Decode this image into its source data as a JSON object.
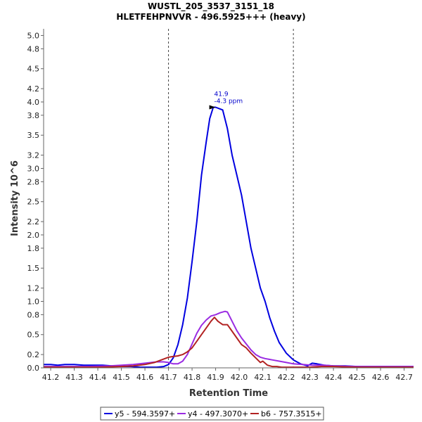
{
  "chart_data": {
    "type": "line",
    "title": "WUSTL_205_3537_3151_18",
    "subtitle": "HLETFEHPNVVR - 496.5925+++ (heavy)",
    "xlabel": "Retention Time",
    "ylabel": "Intensity 10^6",
    "xlim": [
      41.17,
      42.74
    ],
    "ylim": [
      0,
      5.1
    ],
    "x_ticks": [
      "41.2",
      "41.3",
      "41.4",
      "41.5",
      "41.6",
      "41.7",
      "41.8",
      "41.9",
      "42.0",
      "42.1",
      "42.2",
      "42.3",
      "42.4",
      "42.5",
      "42.6",
      "42.7"
    ],
    "y_ticks": [
      "0.0",
      "0.2",
      "0.5",
      "0.8",
      "1.0",
      "1.2",
      "1.5",
      "1.8",
      "2.0",
      "2.2",
      "2.5",
      "2.8",
      "3.0",
      "3.2",
      "3.5",
      "3.8",
      "4.0",
      "4.2",
      "4.5",
      "4.8",
      "5.0"
    ],
    "integration_bounds": [
      41.7,
      42.23
    ],
    "annotation": {
      "x": 41.885,
      "y": 3.92,
      "line1": "41.9",
      "line2": "-4.3 ppm"
    },
    "series": [
      {
        "name": "y5 - 594.3597+",
        "color": "#0000e0",
        "x": [
          41.17,
          41.2,
          41.23,
          41.26,
          41.3,
          41.34,
          41.38,
          41.42,
          41.46,
          41.5,
          41.54,
          41.58,
          41.62,
          41.65,
          41.68,
          41.7,
          41.72,
          41.74,
          41.76,
          41.78,
          41.8,
          41.82,
          41.84,
          41.86,
          41.875,
          41.89,
          41.9,
          41.915,
          41.93,
          41.95,
          41.97,
          41.99,
          42.01,
          42.03,
          42.05,
          42.07,
          42.09,
          42.11,
          42.13,
          42.15,
          42.17,
          42.2,
          42.23,
          42.26,
          42.29,
          42.31,
          42.33,
          42.36,
          42.4,
          42.45,
          42.5,
          42.55,
          42.6,
          42.65,
          42.7,
          42.74
        ],
        "y": [
          0.05,
          0.05,
          0.04,
          0.05,
          0.05,
          0.04,
          0.04,
          0.04,
          0.03,
          0.02,
          0.02,
          0.01,
          0.01,
          0.01,
          0.02,
          0.05,
          0.15,
          0.35,
          0.65,
          1.05,
          1.6,
          2.2,
          2.9,
          3.4,
          3.75,
          3.92,
          3.92,
          3.9,
          3.88,
          3.6,
          3.2,
          2.9,
          2.6,
          2.2,
          1.8,
          1.5,
          1.2,
          1.0,
          0.75,
          0.55,
          0.38,
          0.22,
          0.12,
          0.06,
          0.03,
          0.07,
          0.06,
          0.04,
          0.03,
          0.03,
          0.02,
          0.02,
          0.02,
          0.02,
          0.02,
          0.02
        ]
      },
      {
        "name": "y4 - 497.3070+",
        "color": "#9a2be2",
        "x": [
          41.17,
          41.25,
          41.35,
          41.45,
          41.5,
          41.55,
          41.6,
          41.65,
          41.68,
          41.7,
          41.72,
          41.74,
          41.76,
          41.78,
          41.8,
          41.82,
          41.84,
          41.86,
          41.88,
          41.9,
          41.92,
          41.94,
          41.95,
          41.97,
          41.99,
          42.01,
          42.03,
          42.05,
          42.07,
          42.09,
          42.11,
          42.14,
          42.17,
          42.2,
          42.23,
          42.27,
          42.31,
          42.36,
          42.4,
          42.5,
          42.6,
          42.7,
          42.74
        ],
        "y": [
          0.02,
          0.02,
          0.02,
          0.03,
          0.04,
          0.05,
          0.07,
          0.09,
          0.09,
          0.08,
          0.06,
          0.06,
          0.1,
          0.2,
          0.36,
          0.52,
          0.64,
          0.72,
          0.78,
          0.8,
          0.83,
          0.85,
          0.84,
          0.7,
          0.56,
          0.45,
          0.36,
          0.27,
          0.2,
          0.16,
          0.14,
          0.12,
          0.1,
          0.08,
          0.06,
          0.05,
          0.04,
          0.04,
          0.03,
          0.02,
          0.02,
          0.02,
          0.02
        ]
      },
      {
        "name": "b6 - 757.3515+",
        "color": "#b22222",
        "x": [
          41.17,
          41.3,
          41.4,
          41.5,
          41.55,
          41.6,
          41.64,
          41.67,
          41.7,
          41.72,
          41.74,
          41.76,
          41.78,
          41.8,
          41.82,
          41.84,
          41.86,
          41.88,
          41.895,
          41.91,
          41.93,
          41.95,
          41.97,
          41.99,
          42.01,
          42.03,
          42.05,
          42.07,
          42.09,
          42.1,
          42.12,
          42.14,
          42.16,
          42.18,
          42.2,
          42.25,
          42.3,
          42.35,
          42.4,
          42.5,
          42.6,
          42.74
        ],
        "y": [
          0.01,
          0.01,
          0.01,
          0.02,
          0.03,
          0.05,
          0.08,
          0.12,
          0.16,
          0.17,
          0.18,
          0.2,
          0.24,
          0.3,
          0.4,
          0.5,
          0.6,
          0.7,
          0.76,
          0.7,
          0.65,
          0.65,
          0.55,
          0.45,
          0.35,
          0.3,
          0.22,
          0.15,
          0.08,
          0.1,
          0.04,
          0.02,
          0.02,
          0.01,
          0.01,
          0.01,
          0.01,
          0.02,
          0.02,
          0.01,
          0.01,
          0.01
        ]
      }
    ]
  }
}
